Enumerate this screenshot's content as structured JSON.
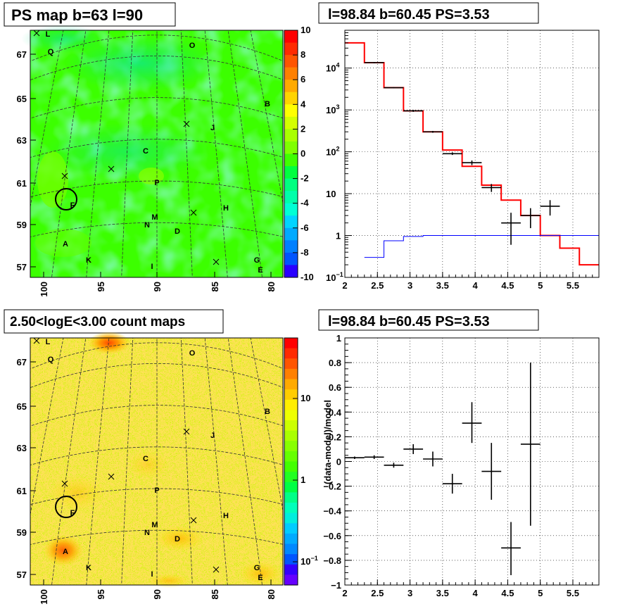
{
  "chart_data": [
    {
      "type": "heatmap",
      "title": "PS map b=63 l=90",
      "x_ticks": [
        "100",
        "95",
        "90",
        "85",
        "80"
      ],
      "y_ticks": [
        "67",
        "65",
        "63",
        "61",
        "59",
        "57"
      ],
      "colorbar": {
        "min": -10,
        "max": 10,
        "labels": [
          "10",
          "8",
          "6",
          "4",
          "2",
          "0",
          "-2",
          "-4",
          "-6",
          "-8",
          "-10"
        ]
      },
      "circle": {
        "l": 98.84,
        "b": 60.45
      },
      "sources": [
        {
          "name": "L",
          "l": 99.5,
          "b": 68.1
        },
        {
          "name": "Q",
          "l": 99.0,
          "b": 67.3
        },
        {
          "name": "O",
          "l": 87.5,
          "b": 67.9
        },
        {
          "name": "B",
          "l": 82.2,
          "b": 64.8
        },
        {
          "name": "J",
          "l": 85.8,
          "b": 63.6
        },
        {
          "name": "C",
          "l": 91.5,
          "b": 62.5
        },
        {
          "name": "P",
          "l": 90.3,
          "b": 61.0
        },
        {
          "name": "F",
          "l": 97.5,
          "b": 60.0
        },
        {
          "name": "H",
          "l": 84.1,
          "b": 59.4
        },
        {
          "name": "M",
          "l": 90.5,
          "b": 59.2
        },
        {
          "name": "N",
          "l": 91.0,
          "b": 58.8
        },
        {
          "name": "D",
          "l": 88.5,
          "b": 58.6
        },
        {
          "name": "A",
          "l": 98.5,
          "b": 57.8
        },
        {
          "name": "K",
          "l": 96.0,
          "b": 57.1
        },
        {
          "name": "I",
          "l": 90.8,
          "b": 56.8
        },
        {
          "name": "G",
          "l": 82.0,
          "b": 57.0
        },
        {
          "name": "E",
          "l": 81.5,
          "b": 56.6
        }
      ]
    },
    {
      "type": "line",
      "title": "l=98.84 b=60.45 PS=3.53",
      "xlim": [
        2,
        5.9
      ],
      "ylim": [
        0.1,
        80000
      ],
      "yscale": "log",
      "x_ticks": [
        "2",
        "2.5",
        "3",
        "3.5",
        "4",
        "4.5",
        "5",
        "5.5"
      ],
      "y_ticks": [
        {
          "v": 0.1,
          "base": "10",
          "exp": "−1"
        },
        {
          "v": 1,
          "base": "1",
          "exp": ""
        },
        {
          "v": 10,
          "base": "10",
          "exp": ""
        },
        {
          "v": 100,
          "base": "10",
          "exp": "2"
        },
        {
          "v": 1000,
          "base": "10",
          "exp": "3"
        },
        {
          "v": 10000,
          "base": "10",
          "exp": "4"
        }
      ],
      "grid": true,
      "series": [
        {
          "color": "#ff0000",
          "edges": [
            2.0,
            2.3,
            2.6,
            2.9,
            3.2,
            3.5,
            3.8,
            4.1,
            4.4,
            4.7,
            5.0,
            5.3,
            5.6,
            5.9
          ],
          "values": [
            40000,
            13500,
            3400,
            950,
            300,
            110,
            45,
            16,
            7,
            3,
            1,
            0.5,
            0.2
          ]
        },
        {
          "color": "#0000ff",
          "edges": [
            2.3,
            2.6,
            2.9,
            3.2,
            3.5,
            5.9
          ],
          "values": [
            0.3,
            0.75,
            0.95,
            1,
            1
          ]
        }
      ],
      "points": [
        {
          "x": 2.45,
          "xerr": 0.15,
          "y": 13500,
          "ylo": 13000,
          "yhi": 14000
        },
        {
          "x": 2.75,
          "xerr": 0.15,
          "y": 3400,
          "ylo": 3300,
          "yhi": 3500
        },
        {
          "x": 3.05,
          "xerr": 0.15,
          "y": 950,
          "ylo": 900,
          "yhi": 1000
        },
        {
          "x": 3.35,
          "xerr": 0.15,
          "y": 300,
          "ylo": 285,
          "yhi": 315
        },
        {
          "x": 3.65,
          "xerr": 0.15,
          "y": 90,
          "ylo": 84,
          "yhi": 97
        },
        {
          "x": 3.95,
          "xerr": 0.15,
          "y": 55,
          "ylo": 48,
          "yhi": 62
        },
        {
          "x": 4.25,
          "xerr": 0.15,
          "y": 14,
          "ylo": 11,
          "yhi": 17
        },
        {
          "x": 4.55,
          "xerr": 0.15,
          "y": 2,
          "ylo": 0.6,
          "yhi": 3.5
        },
        {
          "x": 4.85,
          "xerr": 0.15,
          "y": 3,
          "ylo": 1.5,
          "yhi": 4.5
        },
        {
          "x": 5.15,
          "xerr": 0.15,
          "y": 5,
          "ylo": 3.0,
          "yhi": 7.0
        }
      ]
    },
    {
      "type": "heatmap",
      "title": "2.50<logE<3.00 count maps",
      "x_ticks": [
        "100",
        "95",
        "90",
        "85",
        "80"
      ],
      "y_ticks": [
        "67",
        "65",
        "63",
        "61",
        "59",
        "57"
      ],
      "colorbar": {
        "scale": "log",
        "labels": [
          {
            "v": 10,
            "base": "10",
            "exp": ""
          },
          {
            "v": 1,
            "base": "1",
            "exp": ""
          },
          {
            "v": 0.1,
            "base": "10",
            "exp": "−1"
          }
        ]
      },
      "circle": {
        "l": 98.84,
        "b": 60.45
      },
      "sources": [
        {
          "name": "L",
          "l": 99.5,
          "b": 68.1
        },
        {
          "name": "Q",
          "l": 99.0,
          "b": 67.3
        },
        {
          "name": "O",
          "l": 87.5,
          "b": 67.9
        },
        {
          "name": "B",
          "l": 82.2,
          "b": 64.8
        },
        {
          "name": "J",
          "l": 85.8,
          "b": 63.6
        },
        {
          "name": "C",
          "l": 91.5,
          "b": 62.5
        },
        {
          "name": "P",
          "l": 90.3,
          "b": 61.0
        },
        {
          "name": "F",
          "l": 97.5,
          "b": 60.0
        },
        {
          "name": "H",
          "l": 84.1,
          "b": 59.4
        },
        {
          "name": "M",
          "l": 90.5,
          "b": 59.2
        },
        {
          "name": "N",
          "l": 91.0,
          "b": 58.8
        },
        {
          "name": "D",
          "l": 88.5,
          "b": 58.6
        },
        {
          "name": "A",
          "l": 98.5,
          "b": 57.8
        },
        {
          "name": "K",
          "l": 96.0,
          "b": 57.1
        },
        {
          "name": "I",
          "l": 90.8,
          "b": 56.8
        },
        {
          "name": "G",
          "l": 82.0,
          "b": 57.0
        },
        {
          "name": "E",
          "l": 81.5,
          "b": 56.6
        }
      ]
    },
    {
      "type": "scatter",
      "title": "l=98.84 b=60.45 PS=3.53",
      "ylabel": "(data-model)/model",
      "xlim": [
        2,
        5.9
      ],
      "ylim": [
        -1,
        1
      ],
      "x_ticks": [
        "2",
        "2.5",
        "3",
        "3.5",
        "4",
        "4.5",
        "5",
        "5.5"
      ],
      "y_ticks": [
        "1",
        "0.8",
        "0.6",
        "0.4",
        "0.2",
        "0",
        "−0.2",
        "−0.4",
        "−0.6",
        "−0.8",
        "−1"
      ],
      "grid": true,
      "points": [
        {
          "x": 2.15,
          "xerr": 0.15,
          "y": 0.03,
          "ylo": 0.02,
          "yhi": 0.04
        },
        {
          "x": 2.45,
          "xerr": 0.15,
          "y": 0.035,
          "ylo": 0.02,
          "yhi": 0.05
        },
        {
          "x": 2.75,
          "xerr": 0.15,
          "y": -0.03,
          "ylo": -0.05,
          "yhi": -0.01
        },
        {
          "x": 3.05,
          "xerr": 0.15,
          "y": 0.1,
          "ylo": 0.06,
          "yhi": 0.14
        },
        {
          "x": 3.35,
          "xerr": 0.15,
          "y": 0.02,
          "ylo": -0.04,
          "yhi": 0.08
        },
        {
          "x": 3.65,
          "xerr": 0.15,
          "y": -0.18,
          "ylo": -0.26,
          "yhi": -0.1
        },
        {
          "x": 3.95,
          "xerr": 0.15,
          "y": 0.31,
          "ylo": 0.15,
          "yhi": 0.48
        },
        {
          "x": 4.25,
          "xerr": 0.15,
          "y": -0.08,
          "ylo": -0.31,
          "yhi": 0.15
        },
        {
          "x": 4.55,
          "xerr": 0.15,
          "y": -0.7,
          "ylo": -0.92,
          "yhi": -0.49
        },
        {
          "x": 4.85,
          "xerr": 0.15,
          "y": 0.14,
          "ylo": -0.52,
          "yhi": 0.8
        }
      ]
    }
  ]
}
